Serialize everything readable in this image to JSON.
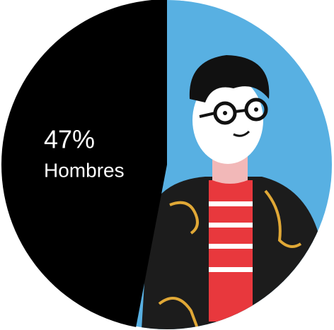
{
  "chart_data": {
    "type": "pie",
    "categories": [
      "Hombres"
    ],
    "values": [
      47
    ],
    "value_labels": [
      "47%"
    ],
    "colors": [
      "#000000"
    ]
  }
}
